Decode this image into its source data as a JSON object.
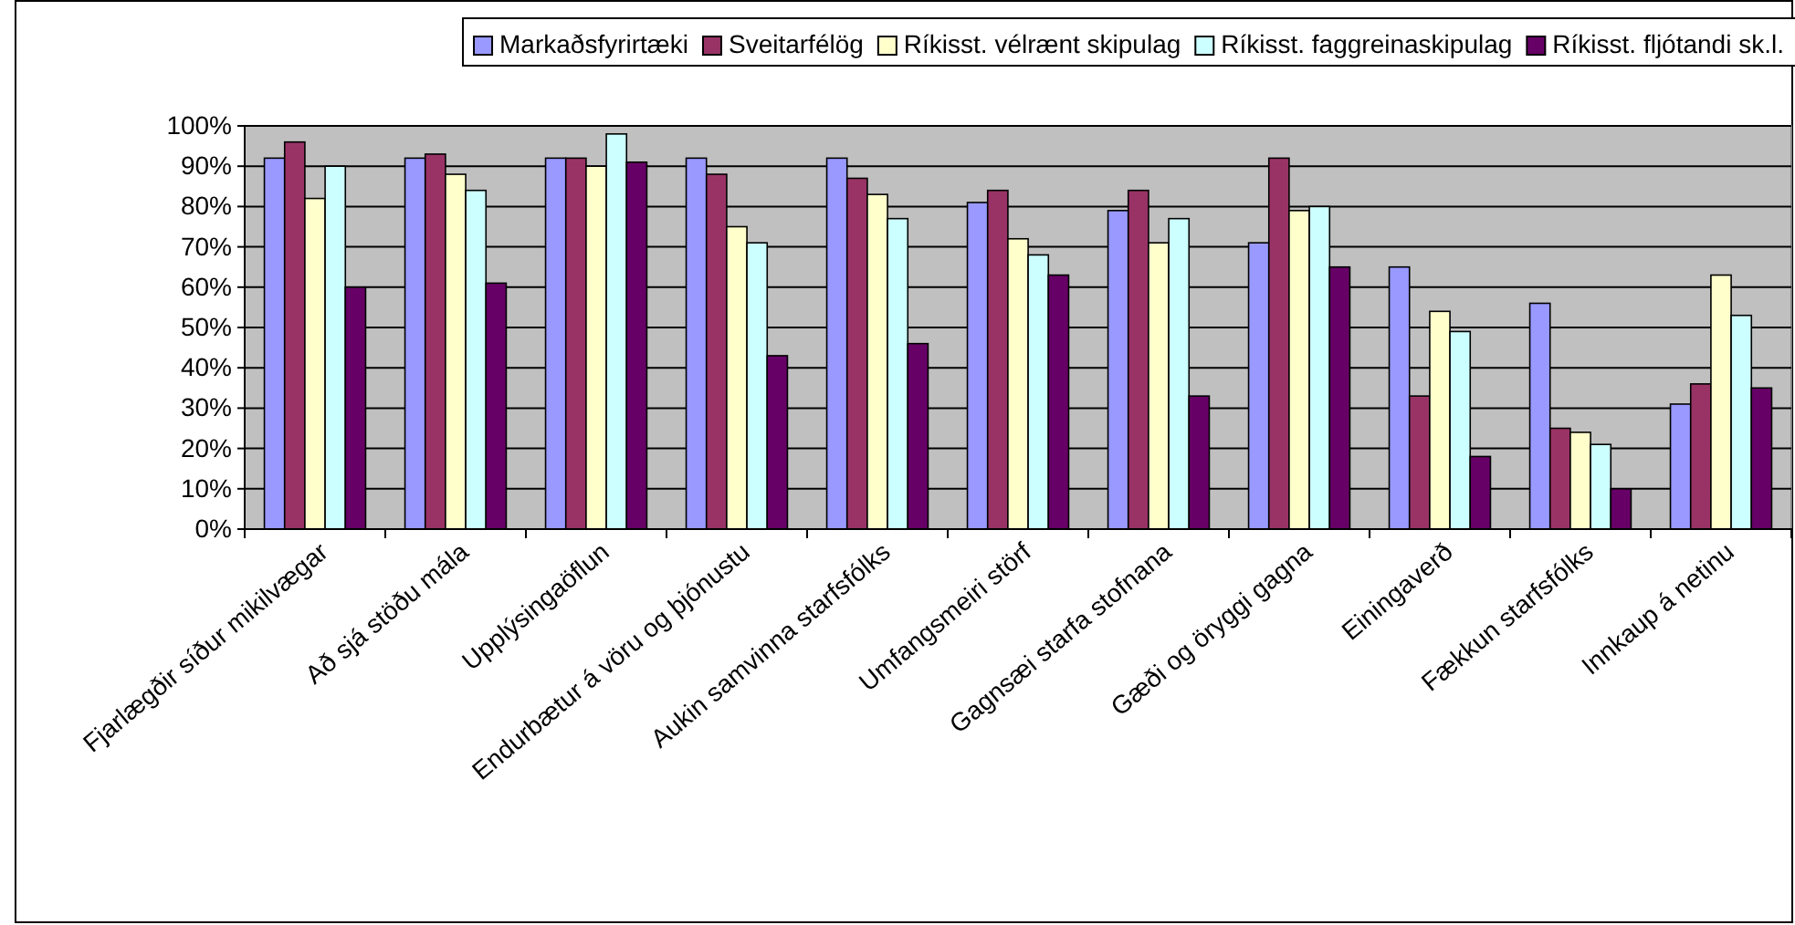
{
  "chart_data": {
    "type": "bar",
    "categories": [
      "Fjarlægðir síður mikilvægar",
      "Að sjá stöðu mála",
      "Upplýsingaöflun",
      "Endurbætur á vöru og þjónustu",
      "Aukin samvinna starfsfólks",
      "Umfangsmeiri störf",
      "Gagnsæi starfa stofnana",
      "Gæði og öryggi gagna",
      "Einingaverð",
      "Fækkun starfsfólks",
      "Innkaup á netinu"
    ],
    "series": [
      {
        "name": "Markaðsfyrirtæki",
        "color": "#9999ff",
        "values": [
          92,
          92,
          92,
          92,
          92,
          81,
          79,
          71,
          65,
          56,
          31
        ]
      },
      {
        "name": "Sveitarfélög",
        "color": "#993366",
        "values": [
          96,
          93,
          92,
          88,
          87,
          84,
          84,
          92,
          33,
          25,
          36
        ]
      },
      {
        "name": "Ríkisst. vélrænt skipulag",
        "color": "#ffffcc",
        "values": [
          82,
          88,
          90,
          75,
          83,
          72,
          71,
          79,
          54,
          24,
          63
        ]
      },
      {
        "name": "Ríkisst. faggreinaskipulag",
        "color": "#ccffff",
        "values": [
          90,
          84,
          98,
          71,
          77,
          68,
          77,
          80,
          49,
          21,
          53
        ]
      },
      {
        "name": "Ríkisst. fljótandi sk.l.",
        "color": "#660066",
        "values": [
          60,
          61,
          91,
          43,
          46,
          63,
          33,
          65,
          18,
          10,
          35
        ]
      }
    ],
    "ylim": [
      0,
      100
    ],
    "yticks": [
      {
        "value": 0,
        "label": "0%"
      },
      {
        "value": 10,
        "label": "10%"
      },
      {
        "value": 20,
        "label": "20%"
      },
      {
        "value": 30,
        "label": "30%"
      },
      {
        "value": 40,
        "label": "40%"
      },
      {
        "value": 50,
        "label": "50%"
      },
      {
        "value": 60,
        "label": "60%"
      },
      {
        "value": 70,
        "label": "70%"
      },
      {
        "value": 80,
        "label": "80%"
      },
      {
        "value": 90,
        "label": "90%"
      },
      {
        "value": 100,
        "label": "100%"
      }
    ],
    "grid": "y",
    "legend": "top"
  }
}
